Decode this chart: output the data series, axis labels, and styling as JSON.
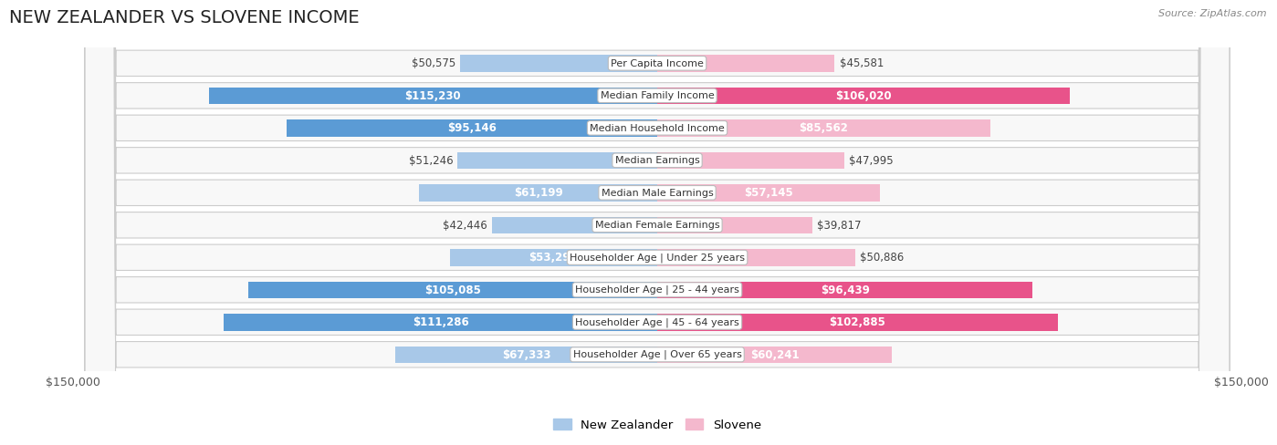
{
  "title": "NEW ZEALANDER VS SLOVENE INCOME",
  "source": "Source: ZipAtlas.com",
  "categories": [
    "Per Capita Income",
    "Median Family Income",
    "Median Household Income",
    "Median Earnings",
    "Median Male Earnings",
    "Median Female Earnings",
    "Householder Age | Under 25 years",
    "Householder Age | 25 - 44 years",
    "Householder Age | 45 - 64 years",
    "Householder Age | Over 65 years"
  ],
  "nz_values": [
    50575,
    115230,
    95146,
    51246,
    61199,
    42446,
    53294,
    105085,
    111286,
    67333
  ],
  "sl_values": [
    45581,
    106020,
    85562,
    47995,
    57145,
    39817,
    50886,
    96439,
    102885,
    60241
  ],
  "nz_color_light": "#a8c8e8",
  "nz_color_dark": "#5b9bd5",
  "sl_color_light": "#f4b8cd",
  "sl_color_dark": "#e8538a",
  "dark_threshold": 0.6,
  "max_val": 150000,
  "xlabel_left": "$150,000",
  "xlabel_right": "$150,000",
  "legend_nz": "New Zealander",
  "legend_sl": "Slovene",
  "label_fontsize": 8.5,
  "title_fontsize": 14,
  "inside_label_color": "white",
  "outside_label_color": "#444444"
}
